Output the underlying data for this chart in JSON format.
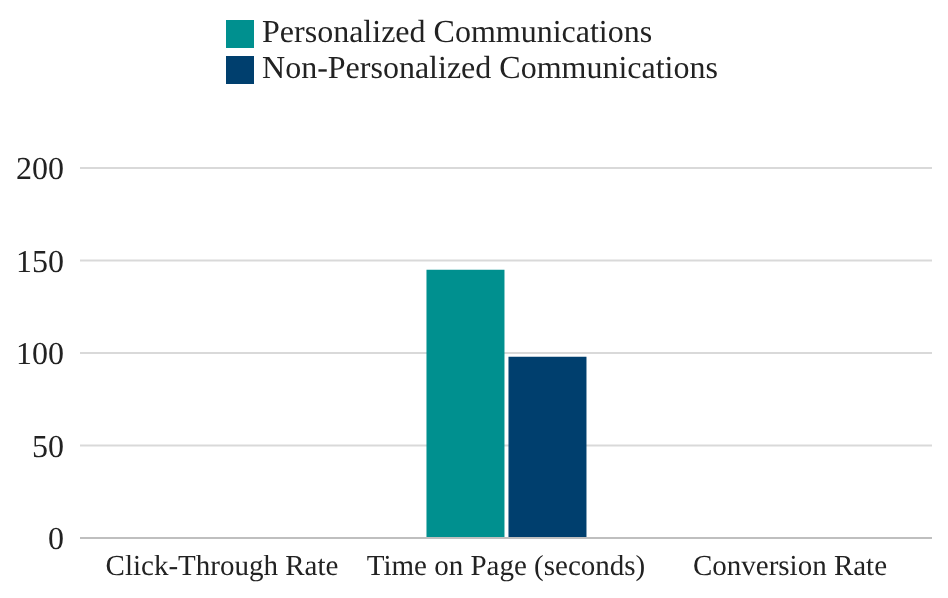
{
  "chart_data": {
    "type": "bar",
    "categories": [
      "Click-Through Rate",
      "Time on Page (seconds)",
      "Conversion Rate"
    ],
    "series": [
      {
        "name": "Personalized Communications",
        "color": "#00908f",
        "values": [
          0,
          145,
          0
        ]
      },
      {
        "name": "Non-Personalized Communications",
        "color": "#003f6e",
        "values": [
          0,
          98,
          0
        ]
      }
    ],
    "ylim": [
      0,
      200
    ],
    "yticks": [
      0,
      50,
      100,
      150,
      200
    ],
    "grid": "y",
    "legend": "top"
  }
}
